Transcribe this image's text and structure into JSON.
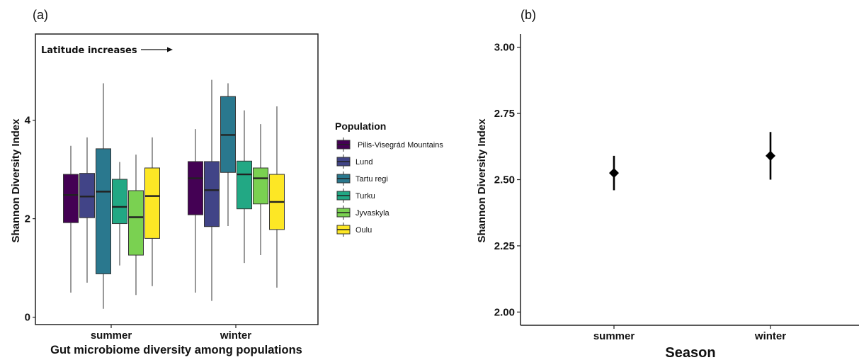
{
  "chart_data": [
    {
      "panel_label": "(a)",
      "type": "box",
      "annotation": "Latitude increases",
      "xlabel": "Gut microbiome diversity among populations",
      "ylabel": "Shannon Diversity Index",
      "categories": [
        "summer",
        "winter"
      ],
      "yticks": [
        "0",
        "2",
        "4"
      ],
      "ylim": [
        -0.15,
        5.75
      ],
      "legend": {
        "title": "Population",
        "placement": "right"
      },
      "series": [
        {
          "name": "Pilis-Visegrád Mountains",
          "color": "#440154",
          "boxes": [
            {
              "min": 0.5,
              "q1": 1.92,
              "median": 2.48,
              "q3": 2.9,
              "max": 3.48
            },
            {
              "min": 0.5,
              "q1": 2.08,
              "median": 2.82,
              "q3": 3.16,
              "max": 3.82
            }
          ]
        },
        {
          "name": "Lund",
          "color": "#414487",
          "boxes": [
            {
              "min": 0.7,
              "q1": 2.02,
              "median": 2.45,
              "q3": 2.92,
              "max": 3.65
            },
            {
              "min": 0.33,
              "q1": 1.84,
              "median": 2.58,
              "q3": 3.16,
              "max": 4.82
            }
          ]
        },
        {
          "name": "Tartu regi",
          "color": "#2a788e",
          "boxes": [
            {
              "min": 0.17,
              "q1": 0.88,
              "median": 2.55,
              "q3": 3.42,
              "max": 4.75
            },
            {
              "min": 1.85,
              "q1": 2.94,
              "median": 3.7,
              "q3": 4.48,
              "max": 4.75
            }
          ]
        },
        {
          "name": "Turku",
          "color": "#22a884",
          "boxes": [
            {
              "min": 1.05,
              "q1": 1.9,
              "median": 2.24,
              "q3": 2.8,
              "max": 3.15
            },
            {
              "min": 1.1,
              "q1": 2.2,
              "median": 2.9,
              "q3": 3.17,
              "max": 4.2
            }
          ]
        },
        {
          "name": "Jyvaskyla",
          "color": "#7ad151",
          "boxes": [
            {
              "min": 0.45,
              "q1": 1.26,
              "median": 2.03,
              "q3": 2.57,
              "max": 3.3
            },
            {
              "min": 1.26,
              "q1": 2.3,
              "median": 2.82,
              "q3": 3.03,
              "max": 3.92
            }
          ]
        },
        {
          "name": "Oulu",
          "color": "#fde725",
          "boxes": [
            {
              "min": 0.63,
              "q1": 1.6,
              "median": 2.46,
              "q3": 3.03,
              "max": 3.65
            },
            {
              "min": 0.6,
              "q1": 1.78,
              "median": 2.34,
              "q3": 2.9,
              "max": 4.28
            }
          ]
        }
      ]
    },
    {
      "panel_label": "(b)",
      "type": "scatter",
      "xlabel": "Season",
      "ylabel": "Shannon Diversity Index",
      "categories": [
        "summer",
        "winter"
      ],
      "yticks": [
        "2.00",
        "2.25",
        "2.50",
        "2.75",
        "3.00"
      ],
      "ylim": [
        1.95,
        3.05
      ],
      "points": [
        {
          "x": "summer",
          "y": 2.525,
          "low": 2.46,
          "high": 2.59
        },
        {
          "x": "winter",
          "y": 2.59,
          "low": 2.5,
          "high": 2.68
        }
      ],
      "marker_color": "#000000"
    }
  ]
}
